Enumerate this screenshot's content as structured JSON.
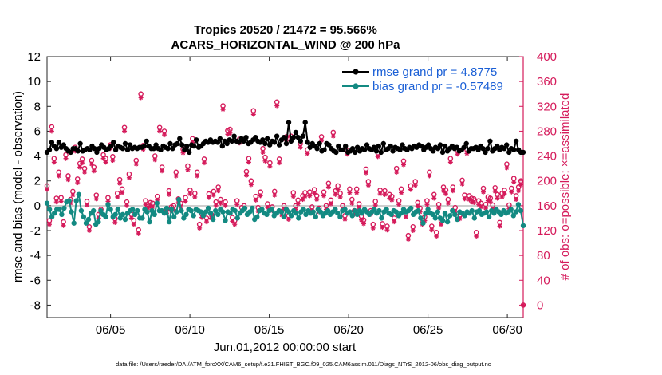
{
  "chart_data": {
    "type": "line",
    "title_line1": "Tropics 20520 / 21472 = 95.566%",
    "title_line2": "ACARS_HORIZONTAL_WIND @ 200 hPa",
    "xlabel": "Jun.01,2012 00:00:00 start",
    "ylabel_left": "rmse and bias (model - observation)",
    "ylabel_right": "# of obs: o=possible; ×=assimilated",
    "x_tick_labels": [
      "06/05",
      "06/10",
      "06/15",
      "06/20",
      "06/25",
      "06/30"
    ],
    "x_tick_days": [
      5,
      10,
      15,
      20,
      25,
      30
    ],
    "xlim_days": [
      1.0,
      31.0
    ],
    "ylim_left": [
      -9,
      12
    ],
    "yticks_left": [
      "-8",
      "-6",
      "-4",
      "-2",
      "0",
      "2",
      "4",
      "6",
      "8",
      "10",
      "12"
    ],
    "ylim_right": [
      -20,
      400
    ],
    "yticks_right": [
      "0",
      "40",
      "80",
      "120",
      "160",
      "200",
      "240",
      "280",
      "320",
      "360",
      "400"
    ],
    "footer": "data file: /Users/raeder/DAI/ATM_forcXX/CAM6_setup/f.e21.FHIST_BGC.f09_025.CAM6assim.011/Diags_NTrS_2012-06/obs_diag_output.nc",
    "series": [
      {
        "name": "rmse grand pr = 4.8775",
        "color": "#000000",
        "values": [
          4.3,
          4.5,
          5.1,
          4.8,
          4.6,
          5.1,
          4.7,
          4.9,
          4.6,
          4.4,
          4.3,
          4.6,
          4.6,
          4.4,
          5.0,
          4.4,
          4.5,
          4.6,
          4.5,
          4.8,
          4.6,
          4.3,
          4.6,
          4.9,
          4.7,
          4.5,
          4.6,
          4.8,
          5.1,
          4.5,
          4.8,
          4.7,
          4.6,
          5.0,
          4.5,
          4.9,
          4.6,
          4.7,
          4.6,
          4.7,
          4.7,
          4.8,
          5.2,
          4.8,
          4.6,
          4.6,
          4.9,
          4.6,
          4.5,
          4.8,
          4.7,
          4.6,
          5.0,
          4.6,
          4.9,
          5.0,
          5.4,
          4.9,
          4.5,
          4.8,
          4.3,
          4.9,
          4.8,
          5.3,
          4.7,
          4.8,
          5.0,
          5.2,
          5.1,
          5.3,
          5.1,
          5.2,
          5.1,
          5.4,
          4.8,
          5.2,
          5.0,
          5.3,
          5.2,
          5.6,
          5.2,
          5.1,
          5.4,
          5.2,
          5.5,
          5.0,
          5.1,
          5.3,
          5.5,
          5.2,
          5.1,
          5.3,
          5.0,
          5.4,
          4.9,
          5.2,
          5.1,
          5.6,
          4.9,
          5.3,
          5.5,
          5.0,
          6.7,
          5.2,
          5.5,
          5.9,
          5.5,
          5.2,
          5.6,
          6.7,
          5.1,
          4.7,
          5.0,
          4.8,
          4.6,
          5.0,
          4.4,
          4.5,
          5.0,
          4.9,
          4.6,
          4.4,
          4.3,
          4.8,
          4.5,
          4.5,
          4.8,
          4.3,
          4.4,
          4.6,
          4.3,
          4.7,
          4.4,
          4.6,
          4.5,
          4.9,
          4.6,
          4.5,
          4.7,
          4.4,
          4.8,
          4.3,
          5.0,
          4.5,
          4.6,
          4.8,
          4.4,
          4.7,
          4.6,
          4.5,
          4.9,
          4.6,
          4.5,
          4.7,
          4.6,
          4.8,
          4.7,
          4.9,
          4.8,
          4.5,
          4.7,
          4.9,
          4.6,
          4.4,
          4.7,
          4.6,
          4.9,
          4.3,
          4.8,
          4.4,
          4.6,
          4.8,
          4.6,
          4.7,
          4.4,
          4.5,
          4.7,
          5.0,
          4.4,
          4.6,
          4.6,
          4.7,
          4.5,
          4.8,
          4.6,
          4.3,
          4.6,
          5.2,
          4.4,
          4.6,
          4.8,
          4.5,
          4.7,
          4.6,
          4.9,
          4.3,
          4.6,
          4.5,
          5.2,
          4.5,
          4.3,
          4.3
        ]
      },
      {
        "name": "bias grand pr = -0.57489",
        "color": "#138a82",
        "values": [
          0.2,
          -0.3,
          -0.9,
          -0.6,
          -0.3,
          -0.3,
          -0.7,
          -0.2,
          0.3,
          0.4,
          -0.5,
          -1.4,
          0.4,
          0.9,
          -0.4,
          -0.9,
          -1.4,
          -1.1,
          -0.6,
          -0.4,
          -1.5,
          -1.3,
          -0.4,
          -0.7,
          -0.9,
          0.1,
          -0.3,
          -0.9,
          -0.7,
          -0.3,
          -1.0,
          -0.7,
          -1.1,
          -0.6,
          -0.4,
          -0.3,
          -0.7,
          -0.4,
          -1.0,
          -1.0,
          -0.3,
          -0.5,
          -1.3,
          -0.4,
          -0.7,
          0.2,
          -0.4,
          -0.4,
          -0.6,
          -0.2,
          -1.3,
          -0.3,
          -0.9,
          -0.5,
          0.5,
          -0.4,
          -1.0,
          -0.7,
          -0.3,
          -0.4,
          -0.8,
          -0.3,
          -0.4,
          -0.5,
          -0.8,
          -0.5,
          -0.2,
          -0.6,
          -1.1,
          -0.4,
          -0.7,
          -0.3,
          -0.5,
          -1.2,
          -0.5,
          -0.6,
          -0.3,
          -0.4,
          -1.0,
          -0.6,
          -0.4,
          -0.2,
          -0.7,
          -0.5,
          -0.2,
          -1.1,
          -0.9,
          -0.4,
          -0.3,
          -0.6,
          -0.7,
          -0.4,
          -0.3,
          -0.8,
          -0.6,
          -0.4,
          -0.5,
          -0.9,
          -0.3,
          -0.5,
          -0.8,
          -0.4,
          -0.6,
          -1.0,
          -0.5,
          -0.3,
          -0.7,
          -0.4,
          -0.6,
          -0.5,
          -0.9,
          -0.3,
          -0.5,
          -0.8,
          -0.6,
          -0.4,
          -0.7,
          -0.5,
          -0.3,
          -0.6,
          -0.9,
          -0.4,
          -0.3,
          -0.6,
          -0.5,
          -0.8,
          -0.4,
          -0.7,
          -0.4,
          -0.6,
          -0.3,
          -0.5,
          -0.7,
          -0.5,
          -0.3,
          -0.6,
          -0.4,
          -1.0,
          -0.5,
          -0.3,
          -0.6,
          -0.7,
          -0.4,
          -0.5,
          -0.8,
          -0.6,
          -0.3,
          -0.5,
          -0.4,
          -0.2,
          -0.7,
          -0.5,
          -0.4,
          -1.0,
          -1.4,
          -0.6,
          -0.3,
          -0.6,
          -0.7,
          -1.0,
          -0.5,
          -1.0,
          -1.2,
          -0.6,
          -1.3,
          -0.8,
          -0.4,
          -0.7,
          -1.1,
          -0.5,
          -0.6,
          -0.8,
          -0.5,
          -0.6,
          -0.4,
          -1.0,
          -0.5,
          -0.4,
          -0.7,
          -0.6,
          -0.5,
          -0.9,
          -0.4,
          -0.6,
          -0.3,
          -0.5,
          -0.7,
          -0.4,
          -0.6,
          -0.5,
          -0.3,
          -0.8,
          -0.5,
          0.1,
          -0.4,
          -1.6
        ]
      }
    ],
    "obs_possible": {
      "name": "o=possible",
      "color": "#d51b5b",
      "values": [
        192,
        136,
        287,
        236,
        172,
        214,
        173,
        134,
        242,
        208,
        170,
        183,
        254,
        203,
        228,
        235,
        220,
        167,
        126,
        233,
        222,
        177,
        146,
        154,
        242,
        236,
        173,
        258,
        239,
        139,
        180,
        202,
        187,
        286,
        166,
        211,
        146,
        136,
        233,
        121,
        340,
        257,
        168,
        162,
        165,
        164,
        240,
        175,
        286,
        222,
        280,
        154,
        184,
        158,
        160,
        214,
        171,
        164,
        251,
        173,
        224,
        185,
        268,
        180,
        214,
        130,
        147,
        235,
        140,
        179,
        146,
        183,
        166,
        190,
        170,
        321,
        166,
        281,
        283,
        141,
        136,
        168,
        267,
        157,
        160,
        215,
        236,
        200,
        313,
        175,
        157,
        182,
        252,
        238,
        163,
        229,
        158,
        183,
        327,
        235,
        151,
        160,
        271,
        144,
        272,
        181,
        160,
        169,
        260,
        176,
        181,
        250,
        182,
        158,
        186,
        176,
        156,
        271,
        182,
        160,
        196,
        169,
        278,
        184,
        192,
        180,
        160,
        144,
        249,
        187,
        170,
        152,
        187,
        163,
        143,
        137,
        219,
        199,
        152,
        130,
        167,
        245,
        185,
        131,
        184,
        127,
        178,
        175,
        140,
        220,
        168,
        187,
        232,
        148,
        112,
        192,
        126,
        199,
        165,
        156,
        136,
        142,
        168,
        214,
        127,
        178,
        117,
        162,
        136,
        190,
        185,
        170,
        236,
        190,
        157,
        249,
        145,
        201,
        177,
        250,
        176,
        172,
        171,
        117,
        168,
        164,
        188,
        162,
        174,
        172,
        161,
        189,
        178,
        133,
        180,
        185,
        227,
        161,
        188,
        204,
        176,
        190,
        200,
        0
      ]
    },
    "obs_assimilated": {
      "name": "x=assimilated",
      "color": "#d51b5b",
      "values": [
        186,
        130,
        280,
        230,
        166,
        208,
        167,
        128,
        236,
        202,
        164,
        177,
        248,
        197,
        222,
        229,
        214,
        161,
        120,
        227,
        216,
        171,
        140,
        148,
        236,
        230,
        167,
        252,
        233,
        133,
        174,
        196,
        181,
        280,
        160,
        205,
        140,
        130,
        227,
        115,
        334,
        251,
        162,
        156,
        159,
        158,
        234,
        169,
        280,
        216,
        274,
        148,
        178,
        152,
        154,
        208,
        165,
        158,
        245,
        167,
        218,
        179,
        262,
        174,
        208,
        124,
        141,
        229,
        134,
        173,
        140,
        177,
        160,
        184,
        164,
        315,
        160,
        275,
        277,
        135,
        130,
        162,
        261,
        151,
        154,
        209,
        230,
        194,
        307,
        169,
        151,
        176,
        246,
        232,
        157,
        223,
        152,
        177,
        321,
        229,
        145,
        154,
        265,
        138,
        266,
        175,
        154,
        163,
        254,
        170,
        175,
        244,
        176,
        152,
        180,
        170,
        150,
        265,
        176,
        154,
        190,
        163,
        272,
        178,
        186,
        174,
        154,
        138,
        243,
        181,
        164,
        146,
        181,
        157,
        137,
        131,
        213,
        193,
        146,
        124,
        161,
        239,
        179,
        125,
        178,
        121,
        172,
        169,
        134,
        214,
        162,
        181,
        226,
        142,
        106,
        186,
        120,
        193,
        159,
        150,
        130,
        136,
        162,
        208,
        121,
        172,
        111,
        156,
        130,
        184,
        179,
        164,
        230,
        184,
        151,
        243,
        139,
        195,
        171,
        244,
        170,
        166,
        165,
        111,
        162,
        158,
        182,
        156,
        168,
        166,
        155,
        183,
        172,
        127,
        174,
        179,
        221,
        155,
        182,
        198,
        170,
        184,
        194,
        0
      ]
    }
  }
}
